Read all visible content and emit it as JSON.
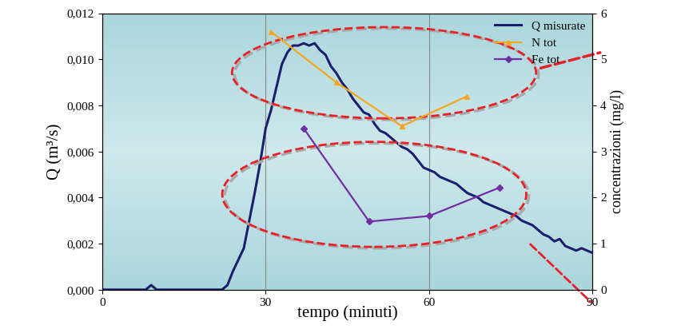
{
  "chart_data": {
    "type": "line",
    "x_label": "tempo (minuti)",
    "y_label": "Q (m³/s)",
    "y2_label": "concentrazioni (mg/l)",
    "xlim": [
      0,
      90
    ],
    "xticks": [
      0,
      30,
      60,
      90
    ],
    "ylim": [
      0,
      0.012
    ],
    "yticks": [
      {
        "value": 0,
        "label": "0,000"
      },
      {
        "value": 0.002,
        "label": "0,002"
      },
      {
        "value": 0.004,
        "label": "0,004"
      },
      {
        "value": 0.006,
        "label": "0,006"
      },
      {
        "value": 0.008,
        "label": "0,008"
      },
      {
        "value": 0.01,
        "label": "0,010"
      },
      {
        "value": 0.012,
        "label": "0,012"
      }
    ],
    "y2lim": [
      0,
      6
    ],
    "y2ticks": [
      0,
      1,
      2,
      3,
      4,
      5,
      6
    ],
    "grid": true,
    "legend": "upper right",
    "series": [
      {
        "name": "Q misurate",
        "color": "#1c1f6e",
        "axis": "y",
        "line_style": "solid",
        "x": [
          0,
          8,
          9,
          10,
          22,
          23,
          24,
          25,
          26,
          27,
          28,
          29,
          30,
          31,
          32,
          33,
          34,
          35,
          36,
          37,
          38,
          39,
          40,
          41,
          42,
          43,
          44,
          45,
          46,
          47,
          48,
          49,
          50,
          51,
          52,
          53,
          54,
          55,
          56,
          57,
          58,
          59,
          60,
          61,
          62,
          63,
          64,
          65,
          66,
          67,
          68,
          69,
          70,
          71,
          72,
          73,
          74,
          75,
          76,
          77,
          78,
          79,
          80,
          81,
          82,
          83,
          84,
          85,
          86,
          87,
          88,
          89,
          90
        ],
        "values": [
          0,
          0,
          0.0002,
          0,
          0,
          0.0002,
          0.0008,
          0.0013,
          0.0018,
          0.003,
          0.0042,
          0.0055,
          0.007,
          0.0078,
          0.0088,
          0.0098,
          0.0103,
          0.0106,
          0.0106,
          0.0107,
          0.0106,
          0.0107,
          0.0104,
          0.0102,
          0.0097,
          0.0094,
          0.009,
          0.0087,
          0.0083,
          0.008,
          0.0077,
          0.0076,
          0.0072,
          0.0069,
          0.0068,
          0.0066,
          0.0064,
          0.0062,
          0.0061,
          0.0059,
          0.0056,
          0.0053,
          0.0052,
          0.0051,
          0.0049,
          0.0048,
          0.0047,
          0.0046,
          0.0044,
          0.0042,
          0.0041,
          0.004,
          0.0038,
          0.0037,
          0.0036,
          0.0035,
          0.0034,
          0.0033,
          0.0032,
          0.003,
          0.0029,
          0.0028,
          0.0026,
          0.0024,
          0.0023,
          0.0021,
          0.0022,
          0.0019,
          0.0018,
          0.0017,
          0.0018,
          0.0017,
          0.0016
        ]
      },
      {
        "name": "N tot",
        "color": "#f5a623",
        "axis": "y2",
        "marker": "triangle",
        "line_style": "solid",
        "x": [
          31,
          43,
          55,
          67
        ],
        "values": [
          5.6,
          4.5,
          3.55,
          4.2
        ]
      },
      {
        "name": "Fe tot",
        "color": "#7030a0",
        "axis": "y2",
        "marker": "diamond",
        "line_style": "solid",
        "x": [
          37,
          49,
          60,
          73
        ],
        "values": [
          3.5,
          1.48,
          1.6,
          2.22
        ]
      }
    ]
  }
}
